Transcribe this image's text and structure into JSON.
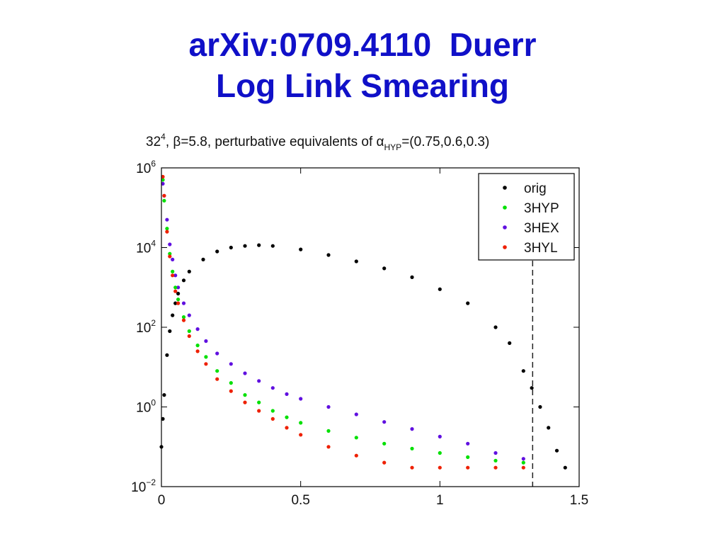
{
  "slide": {
    "title_line1": "arXiv:0709.4110  Duerr",
    "title_line2": "Log Link Smearing"
  },
  "chart_data": {
    "type": "scatter",
    "title": "32⁴, β=5.8, perturbative equivalents of α_HYP=(0.75,0.6,0.3)",
    "title_parts": {
      "a": "32",
      "a_sup": "4",
      "b": ", β=5.8, perturbative equivalents of α",
      "b_sub": "HYP",
      "c": "=(0.75,0.6,0.3)"
    },
    "xlabel": "",
    "ylabel": "",
    "xlim": [
      0,
      1.5
    ],
    "ylim": [
      0.01,
      1000000
    ],
    "yscale": "log",
    "x_ticks": [
      "0",
      "0.5",
      "1",
      "1.5"
    ],
    "y_ticks": [
      {
        "base": "10",
        "exp": "6"
      },
      {
        "base": "10",
        "exp": "4"
      },
      {
        "base": "10",
        "exp": "2"
      },
      {
        "base": "10",
        "exp": "0"
      },
      {
        "base": "10",
        "exp": "−2"
      }
    ],
    "vline_x": 1.333,
    "legend_position": "top-right",
    "grid": false,
    "series": [
      {
        "name": "orig",
        "color": "#000000",
        "x": [
          0,
          0.005,
          0.01,
          0.02,
          0.03,
          0.04,
          0.05,
          0.06,
          0.08,
          0.1,
          0.15,
          0.2,
          0.25,
          0.3,
          0.35,
          0.4,
          0.5,
          0.6,
          0.7,
          0.8,
          0.9,
          1.0,
          1.1,
          1.2,
          1.25,
          1.3,
          1.33,
          1.36,
          1.39,
          1.42,
          1.45
        ],
        "y": [
          0.1,
          0.5,
          2,
          20,
          80,
          200,
          400,
          700,
          1500,
          2500,
          5000,
          8000,
          10000,
          11000,
          11500,
          11000,
          9000,
          6500,
          4500,
          3000,
          1800,
          900,
          400,
          100,
          40,
          8,
          3,
          1,
          0.3,
          0.08,
          0.03
        ]
      },
      {
        "name": "3HYP",
        "color": "#00e000",
        "x": [
          0.005,
          0.01,
          0.02,
          0.03,
          0.04,
          0.05,
          0.06,
          0.08,
          0.1,
          0.13,
          0.16,
          0.2,
          0.25,
          0.3,
          0.35,
          0.4,
          0.45,
          0.5,
          0.6,
          0.7,
          0.8,
          0.9,
          1.0,
          1.1,
          1.2,
          1.3
        ],
        "y": [
          500000,
          150000,
          30000,
          7000,
          2500,
          1000,
          500,
          180,
          80,
          35,
          18,
          8,
          4,
          2,
          1.3,
          0.8,
          0.55,
          0.4,
          0.25,
          0.17,
          0.12,
          0.09,
          0.07,
          0.055,
          0.045,
          0.04
        ]
      },
      {
        "name": "3HEX",
        "color": "#6010e0",
        "x": [
          0.005,
          0.01,
          0.02,
          0.03,
          0.04,
          0.05,
          0.06,
          0.08,
          0.1,
          0.13,
          0.16,
          0.2,
          0.25,
          0.3,
          0.35,
          0.4,
          0.45,
          0.5,
          0.6,
          0.7,
          0.8,
          0.9,
          1.0,
          1.1,
          1.2,
          1.3
        ],
        "y": [
          400000,
          200000,
          50000,
          12000,
          5000,
          2000,
          1000,
          400,
          200,
          90,
          45,
          22,
          12,
          7,
          4.5,
          3,
          2.1,
          1.6,
          1.0,
          0.65,
          0.42,
          0.28,
          0.18,
          0.12,
          0.07,
          0.05
        ]
      },
      {
        "name": "3HYL",
        "color": "#ee2000",
        "x": [
          0.005,
          0.01,
          0.02,
          0.03,
          0.04,
          0.05,
          0.06,
          0.08,
          0.1,
          0.13,
          0.16,
          0.2,
          0.25,
          0.3,
          0.35,
          0.4,
          0.45,
          0.5,
          0.6,
          0.7,
          0.8,
          0.9,
          1.0,
          1.1,
          1.2,
          1.3
        ],
        "y": [
          600000,
          200000,
          25000,
          6000,
          2000,
          800,
          400,
          150,
          60,
          25,
          12,
          5,
          2.5,
          1.3,
          0.8,
          0.5,
          0.3,
          0.2,
          0.1,
          0.06,
          0.04,
          0.03,
          0.03,
          0.03,
          0.03,
          0.03
        ]
      }
    ]
  }
}
